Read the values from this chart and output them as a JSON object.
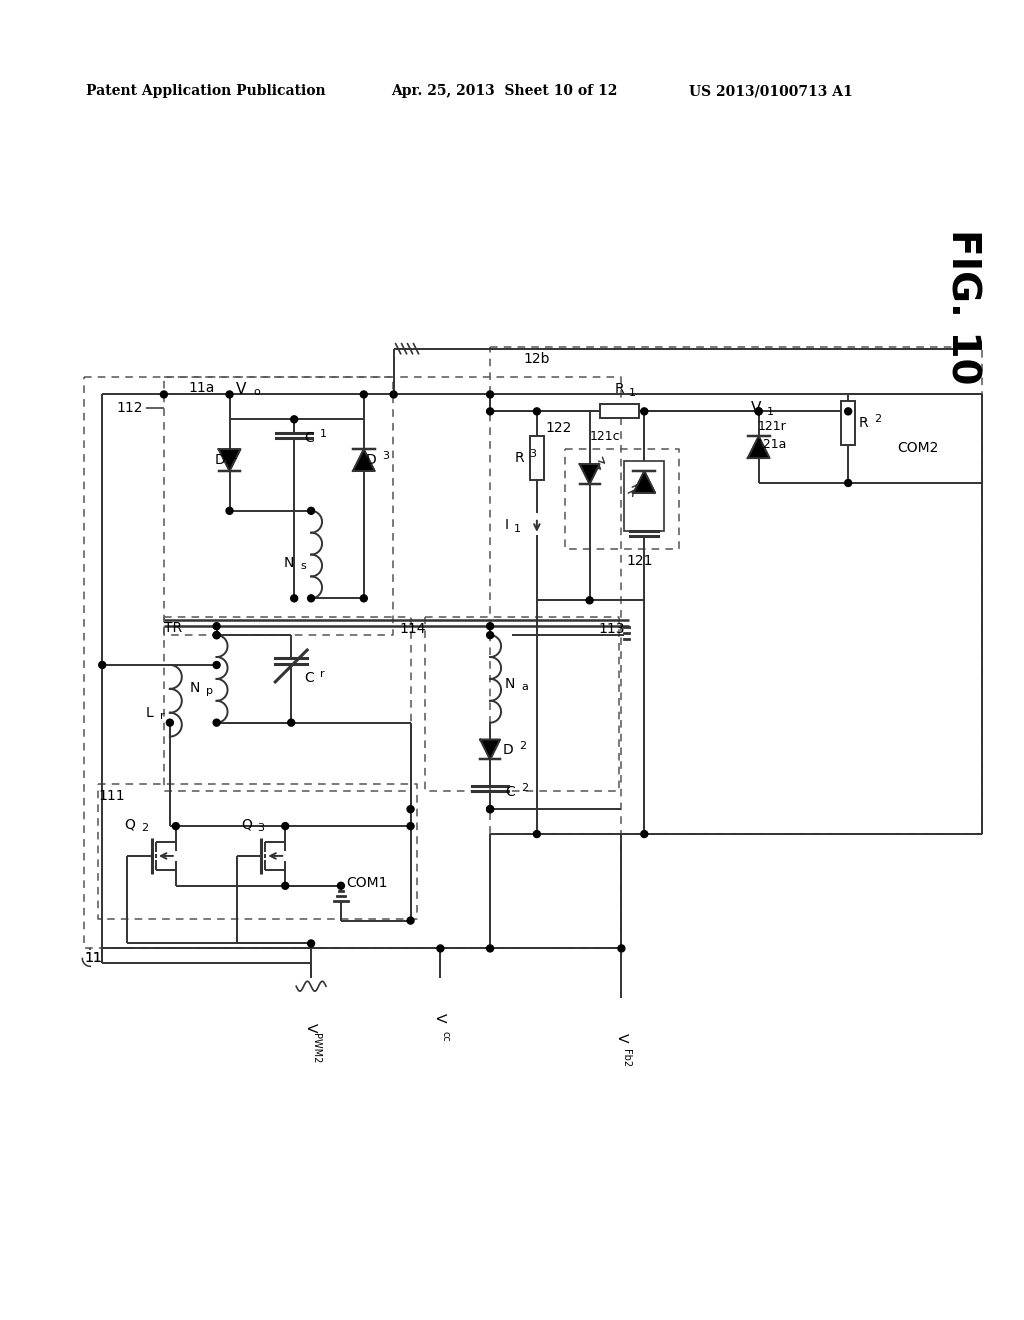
{
  "title_left": "Patent Application Publication",
  "title_mid": "Apr. 25, 2013  Sheet 10 of 12",
  "title_right": "US 2013/0100713 A1",
  "fig_label": "FIG. 10",
  "background": "#ffffff"
}
